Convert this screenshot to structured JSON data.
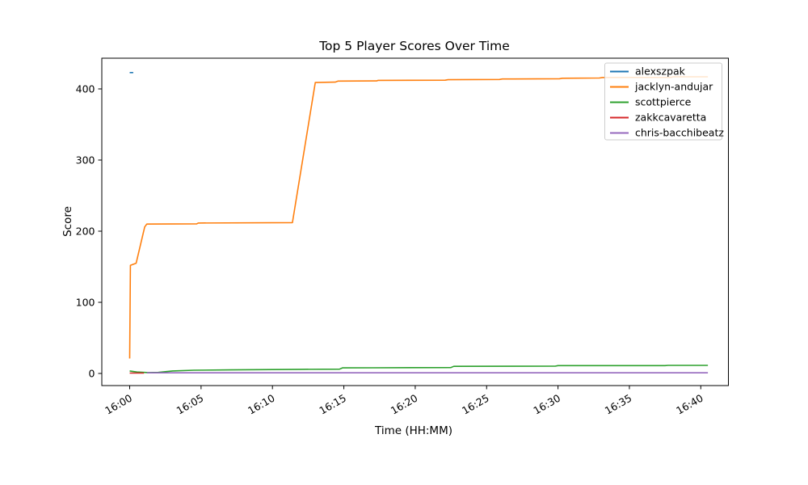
{
  "chart_data": {
    "type": "line",
    "title": "Top 5 Player Scores Over Time",
    "xlabel": "Time (HH:MM)",
    "ylabel": "Score",
    "x_ticks": [
      "16:00",
      "16:05",
      "16:10",
      "16:15",
      "16:20",
      "16:25",
      "16:30",
      "16:35",
      "16:40"
    ],
    "x_tick_minutes": [
      0,
      5,
      10,
      15,
      20,
      25,
      30,
      35,
      40
    ],
    "y_ticks": [
      0,
      100,
      200,
      300,
      400
    ],
    "xlim_minutes": [
      -2,
      42
    ],
    "ylim": [
      -17,
      443
    ],
    "grid": false,
    "legend_position": "upper right",
    "axis_color": "#000000",
    "legend_border_color": "#cccccc",
    "series": [
      {
        "name": "alexszpak",
        "color": "#1f77b4",
        "points": [
          [
            0,
            423
          ],
          [
            0.25,
            423
          ]
        ]
      },
      {
        "name": "jacklyn-andujar",
        "color": "#ff7f0e",
        "points": [
          [
            0,
            21
          ],
          [
            0.05,
            152
          ],
          [
            0.45,
            155
          ],
          [
            1.05,
            206
          ],
          [
            1.2,
            210
          ],
          [
            4.7,
            210.3
          ],
          [
            4.8,
            211.5
          ],
          [
            11.4,
            212
          ],
          [
            13,
            409
          ],
          [
            14.4,
            409.5
          ],
          [
            14.6,
            411
          ],
          [
            17.3,
            411.3
          ],
          [
            17.4,
            412
          ],
          [
            22.1,
            412.3
          ],
          [
            22.3,
            413
          ],
          [
            25.9,
            413.3
          ],
          [
            26.1,
            414
          ],
          [
            30.1,
            414.3
          ],
          [
            30.3,
            415
          ],
          [
            32.9,
            415.3
          ],
          [
            33.1,
            416
          ],
          [
            37.9,
            416.3
          ],
          [
            38.1,
            417
          ],
          [
            40.5,
            417
          ]
        ]
      },
      {
        "name": "scottpierce",
        "color": "#2ca02c",
        "points": [
          [
            0,
            3.5
          ],
          [
            0.5,
            2
          ],
          [
            1.3,
            1.3
          ],
          [
            2,
            1.5
          ],
          [
            3,
            3.5
          ],
          [
            4.5,
            4.5
          ],
          [
            7,
            5
          ],
          [
            10,
            5.5
          ],
          [
            12,
            5.8
          ],
          [
            14.7,
            6
          ],
          [
            14.9,
            7.8
          ],
          [
            17,
            8
          ],
          [
            22.5,
            8.3
          ],
          [
            22.7,
            10
          ],
          [
            29.8,
            10.2
          ],
          [
            30,
            11
          ],
          [
            37.5,
            11
          ],
          [
            37.7,
            11.4
          ],
          [
            40.5,
            11.4
          ]
        ]
      },
      {
        "name": "zakkcavaretta",
        "color": "#d62728",
        "points": [
          [
            0,
            0.6
          ],
          [
            1.0,
            0.6
          ]
        ]
      },
      {
        "name": "chris-bacchibeatz",
        "color": "#9467bd",
        "points": [
          [
            1.2,
            0.9
          ],
          [
            40.5,
            0.9
          ]
        ]
      }
    ]
  }
}
